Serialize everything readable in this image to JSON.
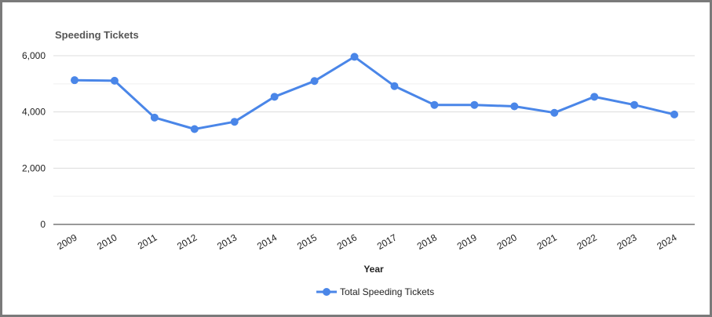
{
  "chart_data": {
    "type": "line",
    "title": "Speeding Tickets",
    "xlabel": "Year",
    "ylabel": "",
    "categories": [
      "2009",
      "2010",
      "2011",
      "2012",
      "2013",
      "2014",
      "2015",
      "2016",
      "2017",
      "2018",
      "2019",
      "2020",
      "2021",
      "2022",
      "2023",
      "2024"
    ],
    "series": [
      {
        "name": "Total Speeding Tickets",
        "values": [
          5130,
          5110,
          3800,
          3390,
          3650,
          4540,
          5100,
          5960,
          4920,
          4250,
          4250,
          4200,
          3970,
          4540,
          4250,
          3910
        ]
      }
    ],
    "ylim": [
      0,
      6000
    ],
    "yticks": [
      0,
      2000,
      4000,
      6000
    ],
    "ytick_labels": [
      "0",
      "2,000",
      "4,000",
      "6,000"
    ],
    "grid": true,
    "legend": "bottom",
    "colors": {
      "series": "#4a86e8",
      "grid": "#e0e0e0",
      "axis": "#333333"
    }
  }
}
